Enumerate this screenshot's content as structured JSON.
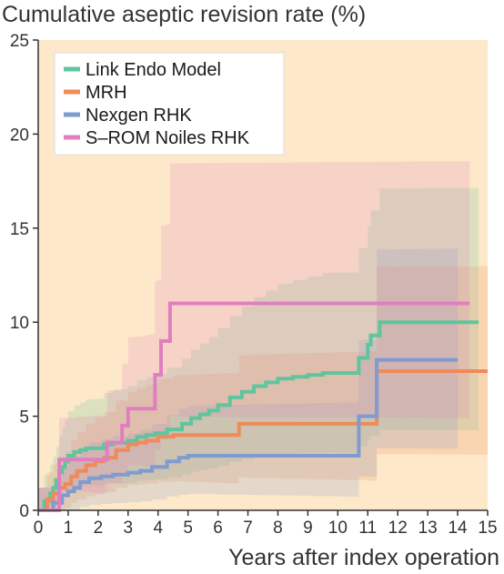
{
  "chart_data": {
    "type": "line",
    "step": true,
    "ylabel": "Cumulative aseptic revision rate (%)",
    "xlabel": "Years after index operation",
    "xlim": [
      0,
      15
    ],
    "ylim": [
      0,
      25
    ],
    "xticks": [
      "0",
      "1",
      "2",
      "3",
      "4",
      "5",
      "6",
      "7",
      "8",
      "9",
      "10",
      "11",
      "12",
      "13",
      "14",
      "15"
    ],
    "yticks": [
      "0",
      "5",
      "10",
      "15",
      "20",
      "25"
    ],
    "grid": false,
    "legend_position": "top-left",
    "background_color": "#fde8c9",
    "series": [
      {
        "name": "Link Endo Model",
        "color": "#5ec59c",
        "x": [
          0,
          0.2,
          0.4,
          0.5,
          0.6,
          0.7,
          0.8,
          0.9,
          1.0,
          1.2,
          1.4,
          1.6,
          1.8,
          2.0,
          2.2,
          2.5,
          2.8,
          3.0,
          3.3,
          3.6,
          3.9,
          4.3,
          4.8,
          5.1,
          5.4,
          5.7,
          6.0,
          6.4,
          6.8,
          7.2,
          7.6,
          8.0,
          8.5,
          9.0,
          9.5,
          10.7,
          11.0,
          11.1,
          11.4,
          14.7
        ],
        "y": [
          0,
          0.5,
          0.9,
          1.2,
          1.6,
          2.0,
          2.3,
          2.6,
          2.9,
          3.1,
          3.2,
          3.3,
          3.3,
          3.3,
          3.5,
          3.6,
          3.6,
          3.7,
          3.9,
          4.0,
          4.1,
          4.3,
          4.6,
          4.9,
          5.1,
          5.3,
          5.6,
          6.0,
          6.3,
          6.6,
          6.8,
          7.0,
          7.1,
          7.2,
          7.3,
          8.1,
          8.8,
          9.3,
          10.0,
          10.0
        ]
      },
      {
        "name": "MRH",
        "color": "#f08a5a",
        "x": [
          0,
          0.3,
          0.5,
          0.7,
          0.9,
          1.1,
          1.3,
          1.6,
          1.9,
          2.2,
          2.6,
          3.0,
          3.3,
          3.6,
          4.0,
          4.5,
          5.0,
          5.5,
          6.0,
          6.7,
          7.0,
          8.0,
          9.0,
          10.0,
          11.0,
          11.3,
          15.0
        ],
        "y": [
          0,
          0.6,
          0.9,
          1.2,
          1.4,
          1.8,
          2.1,
          2.4,
          2.6,
          2.8,
          3.2,
          3.5,
          3.6,
          3.7,
          3.9,
          4.0,
          4.0,
          4.0,
          4.0,
          4.6,
          4.6,
          4.6,
          4.6,
          4.6,
          4.6,
          7.4,
          7.4
        ]
      },
      {
        "name": "Nexgen RHK",
        "color": "#7f9bcf",
        "x": [
          0,
          0.5,
          0.8,
          1.0,
          1.2,
          1.4,
          1.7,
          2.1,
          2.5,
          3.0,
          3.4,
          3.8,
          4.3,
          4.7,
          5.0,
          6.0,
          7.0,
          8.0,
          9.0,
          10.0,
          10.7,
          11.3,
          14.0
        ],
        "y": [
          0,
          0.4,
          0.8,
          1.0,
          1.2,
          1.5,
          1.7,
          1.8,
          1.9,
          2.0,
          2.1,
          2.3,
          2.6,
          2.8,
          2.9,
          2.9,
          2.9,
          2.9,
          2.9,
          2.9,
          5.0,
          8.0,
          8.0
        ]
      },
      {
        "name": "S–ROM Noiles RHK",
        "color": "#e07fc0",
        "x": [
          0,
          0.7,
          1.3,
          1.8,
          2.3,
          2.8,
          3.0,
          3.6,
          3.9,
          4.1,
          4.4,
          14.4
        ],
        "y": [
          0,
          2.7,
          2.7,
          2.7,
          3.6,
          4.5,
          5.4,
          5.4,
          7.2,
          9.0,
          11.0,
          11.0
        ]
      }
    ]
  }
}
